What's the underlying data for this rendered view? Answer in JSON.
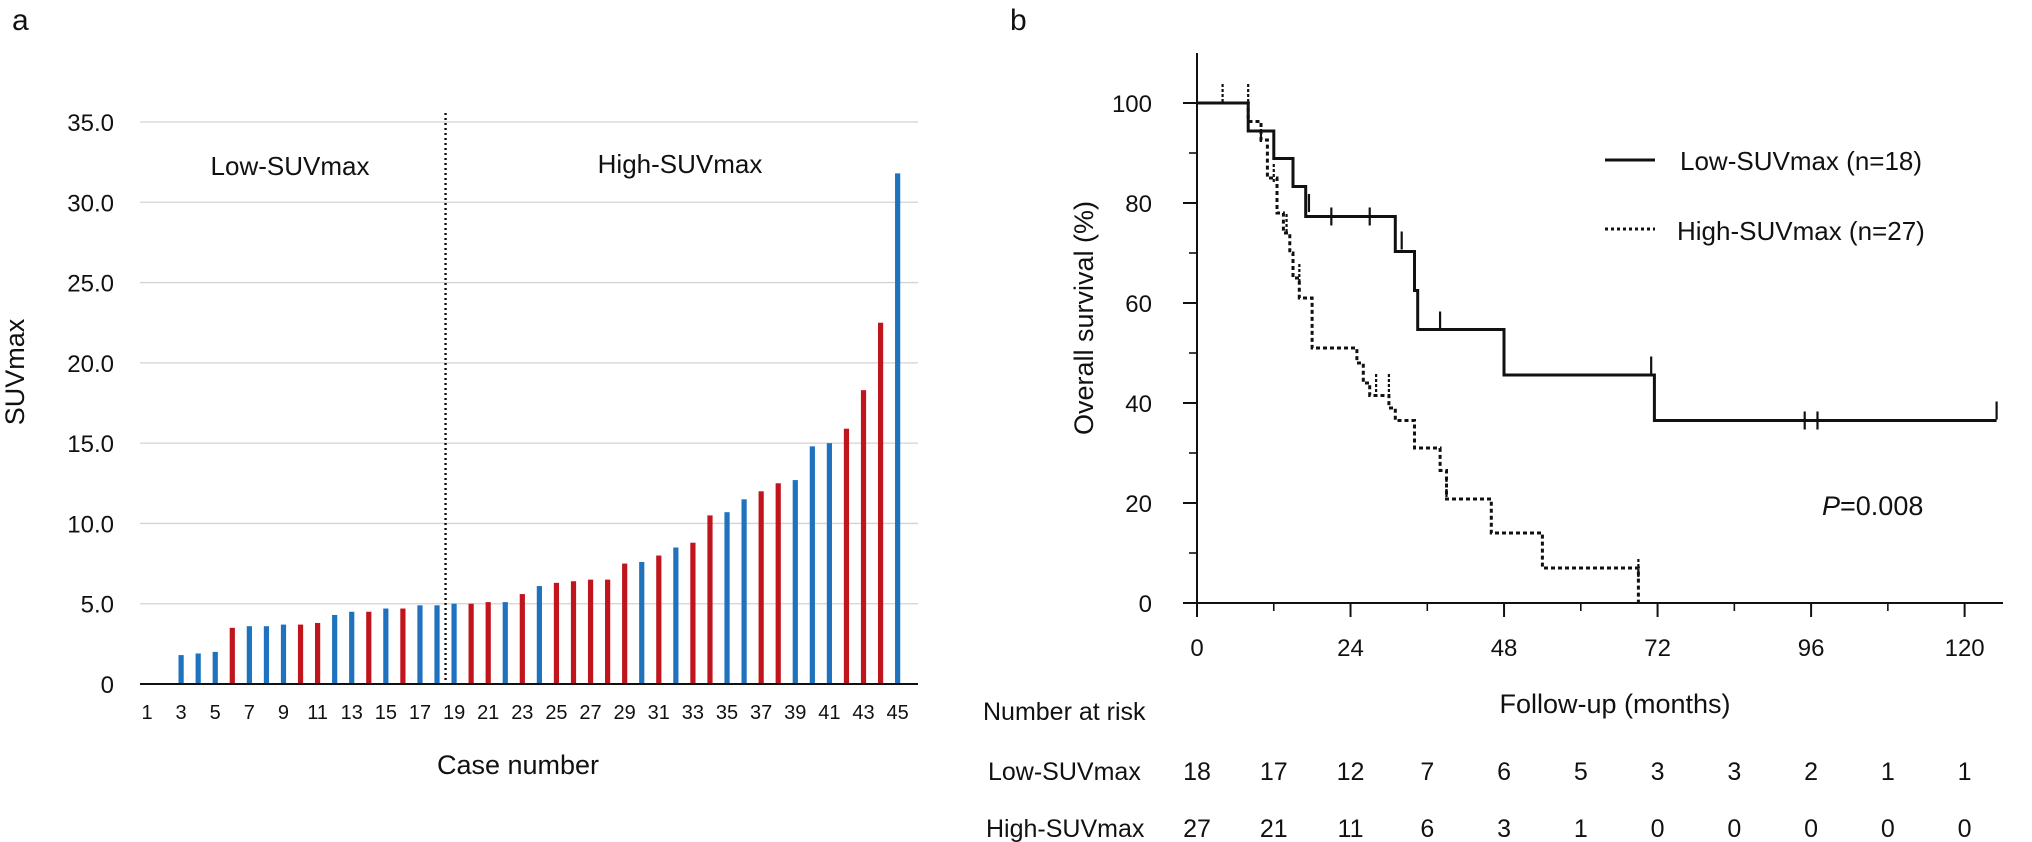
{
  "panels": {
    "a": {
      "letter": "a"
    },
    "b": {
      "letter": "b"
    }
  },
  "colors": {
    "red": "#C0151D",
    "blue": "#1E72BE",
    "grid": "#d3d3d3",
    "axis": "#111111"
  },
  "chart_data": [
    {
      "type": "bar",
      "panel": "a",
      "xlabel": "Case number",
      "ylabel": "SUVmax",
      "ylim": [
        0,
        35
      ],
      "yticks": [
        0,
        5,
        10,
        15,
        20,
        25,
        30,
        35
      ],
      "ytick_labels": [
        "0",
        "5.0",
        "10.0",
        "15.0",
        "20.0",
        "25.0",
        "30.0",
        "35.0"
      ],
      "grid": true,
      "xtick_labels": [
        "1",
        "3",
        "5",
        "7",
        "9",
        "11",
        "13",
        "15",
        "17",
        "19",
        "21",
        "23",
        "25",
        "27",
        "29",
        "31",
        "33",
        "35",
        "37",
        "39",
        "41",
        "43",
        "45"
      ],
      "divider_after_case": 18,
      "group_labels": {
        "low": "Low-SUVmax",
        "high": "High-SUVmax"
      },
      "cases": [
        1,
        2,
        3,
        4,
        5,
        6,
        7,
        8,
        9,
        10,
        11,
        12,
        13,
        14,
        15,
        16,
        17,
        18,
        19,
        20,
        21,
        22,
        23,
        24,
        25,
        26,
        27,
        28,
        29,
        30,
        31,
        32,
        33,
        34,
        35,
        36,
        37,
        38,
        39,
        40,
        41,
        42,
        43,
        44,
        45
      ],
      "values": [
        0,
        0,
        1.8,
        1.9,
        2.0,
        3.5,
        3.6,
        3.6,
        3.7,
        3.7,
        3.8,
        4.3,
        4.5,
        4.5,
        4.7,
        4.7,
        4.9,
        4.9,
        5.0,
        5.0,
        5.1,
        5.1,
        5.6,
        6.1,
        6.3,
        6.4,
        6.5,
        6.5,
        7.5,
        7.6,
        8.0,
        8.5,
        8.8,
        10.5,
        10.7,
        11.5,
        12.0,
        12.5,
        12.7,
        14.8,
        15.0,
        15.9,
        18.3,
        22.5,
        31.8
      ],
      "bar_colors": [
        "blue",
        "blue",
        "blue",
        "blue",
        "blue",
        "red",
        "blue",
        "blue",
        "blue",
        "red",
        "red",
        "blue",
        "blue",
        "red",
        "blue",
        "red",
        "blue",
        "blue",
        "blue",
        "red",
        "red",
        "blue",
        "red",
        "blue",
        "red",
        "red",
        "red",
        "red",
        "red",
        "blue",
        "red",
        "blue",
        "red",
        "red",
        "blue",
        "blue",
        "red",
        "red",
        "blue",
        "blue",
        "blue",
        "red",
        "red",
        "red",
        "blue"
      ]
    },
    {
      "type": "line",
      "panel": "b",
      "xlabel": "Follow-up (months)",
      "ylabel": "Overall survival (%)",
      "xlim": [
        0,
        126
      ],
      "ylim": [
        0,
        110
      ],
      "xticks": [
        0,
        24,
        48,
        72,
        96,
        120
      ],
      "xticks_minor": [
        12,
        36,
        60,
        84,
        108
      ],
      "yticks": [
        0,
        20,
        40,
        60,
        80,
        100
      ],
      "yticks_minor": [
        10,
        30,
        50,
        70,
        90
      ],
      "pvalue": {
        "label": "P",
        "text": "=0.008"
      },
      "series": [
        {
          "name": "Low-SUVmax (n=18)",
          "style": "solid",
          "steps": [
            [
              0,
              100
            ],
            [
              8,
              100
            ],
            [
              8,
              94.4
            ],
            [
              12,
              94.4
            ],
            [
              12,
              88.9
            ],
            [
              15,
              88.9
            ],
            [
              15,
              83.3
            ],
            [
              17,
              83.3
            ],
            [
              17,
              77.3
            ],
            [
              31,
              77.3
            ],
            [
              31,
              70.3
            ],
            [
              34,
              70.3
            ],
            [
              34,
              62.5
            ],
            [
              34.5,
              62.5
            ],
            [
              34.5,
              54.7
            ],
            [
              48,
              54.7
            ],
            [
              48,
              45.6
            ],
            [
              71.5,
              45.6
            ],
            [
              71.5,
              36.5
            ],
            [
              125,
              36.5
            ]
          ],
          "censors": [
            [
              8,
              96.5
            ],
            [
              12,
              92.5
            ],
            [
              17.5,
              80
            ],
            [
              21,
              77.3
            ],
            [
              27,
              77.3
            ],
            [
              32,
              72.5
            ],
            [
              38,
              56.5
            ],
            [
              71,
              47.5
            ],
            [
              95,
              36.5
            ],
            [
              97,
              36.5
            ],
            [
              125,
              38.5
            ]
          ]
        },
        {
          "name": "High-SUVmax (n=27)",
          "style": "dotted",
          "steps": [
            [
              0,
              100
            ],
            [
              8,
              100
            ],
            [
              8,
              96.3
            ],
            [
              10,
              96.3
            ],
            [
              10,
              92.6
            ],
            [
              11,
              92.6
            ],
            [
              11,
              85
            ],
            [
              12.5,
              85
            ],
            [
              12.5,
              78
            ],
            [
              13.5,
              78
            ],
            [
              13.5,
              74
            ],
            [
              14.5,
              74
            ],
            [
              14.5,
              70
            ],
            [
              15,
              70
            ],
            [
              15,
              65
            ],
            [
              16,
              65
            ],
            [
              16,
              61
            ],
            [
              18,
              61
            ],
            [
              18,
              51
            ],
            [
              25,
              51
            ],
            [
              25,
              48
            ],
            [
              26,
              48
            ],
            [
              26,
              44
            ],
            [
              27,
              44
            ],
            [
              27,
              41.5
            ],
            [
              30,
              41.5
            ],
            [
              30,
              39
            ],
            [
              31,
              39
            ],
            [
              31,
              36.5
            ],
            [
              34,
              36.5
            ],
            [
              34,
              31
            ],
            [
              38,
              31
            ],
            [
              38,
              26.5
            ],
            [
              39,
              26.5
            ],
            [
              39,
              20.8
            ],
            [
              46,
              20.8
            ],
            [
              46,
              14
            ],
            [
              54,
              14
            ],
            [
              54,
              7
            ],
            [
              69,
              7
            ],
            [
              69,
              0
            ]
          ],
          "censors": [
            [
              4,
              102
            ],
            [
              8,
              102
            ],
            [
              10,
              94
            ],
            [
              12,
              86
            ],
            [
              14,
              76
            ],
            [
              16,
              66
            ],
            [
              28,
              44
            ],
            [
              30,
              44
            ],
            [
              39,
              23
            ],
            [
              69,
              7
            ]
          ]
        }
      ],
      "risk_table": {
        "title": "Number at risk",
        "times": [
          0,
          12,
          24,
          36,
          48,
          60,
          72,
          84,
          96,
          108,
          120
        ],
        "rows": [
          {
            "label": "Low-SUVmax",
            "values": [
              "18",
              "17",
              "12",
              "7",
              "6",
              "5",
              "3",
              "3",
              "2",
              "1",
              "1"
            ]
          },
          {
            "label": "High-SUVmax",
            "values": [
              "27",
              "21",
              "11",
              "6",
              "3",
              "1",
              "0",
              "0",
              "0",
              "0",
              "0"
            ]
          }
        ]
      }
    }
  ]
}
